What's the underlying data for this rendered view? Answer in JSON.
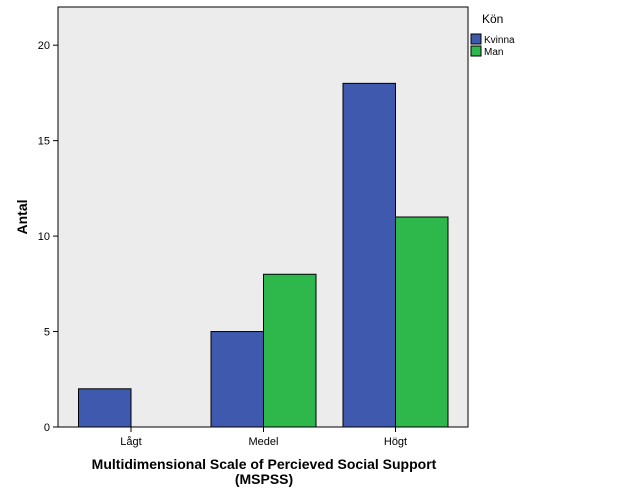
{
  "chart_data": {
    "type": "bar",
    "categories": [
      "Lågt",
      "Medel",
      "Högt"
    ],
    "series": [
      {
        "name": "Kvinna",
        "values": [
          2,
          5,
          18
        ],
        "color": "#3e59ad"
      },
      {
        "name": "Man",
        "values": [
          0,
          8,
          11
        ],
        "color": "#2eb84b"
      }
    ],
    "xlabel_line1": "Multidimensional Scale of Percieved Social Support",
    "xlabel_line2": "(MSPSS)",
    "ylabel": "Antal",
    "ylim": [
      0,
      22
    ],
    "yticks": [
      "0",
      "5",
      "10",
      "15",
      "20"
    ],
    "legend_title": "Kön",
    "legend_position": "top-right",
    "plot_background": "#ececec",
    "grid": false
  }
}
